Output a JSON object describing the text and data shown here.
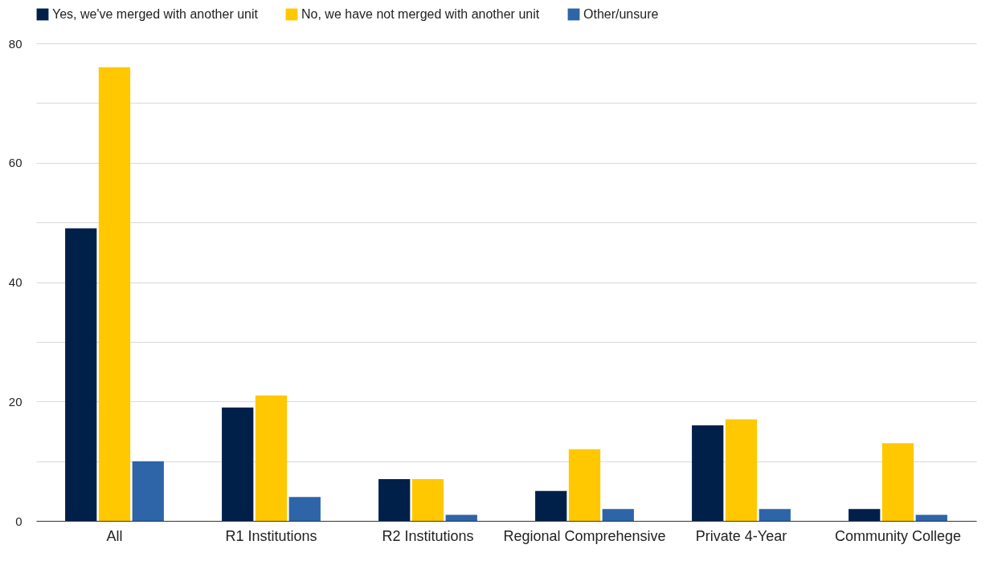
{
  "chart_data": {
    "type": "bar",
    "categories": [
      "All",
      "R1 Institutions",
      "R2 Institutions",
      "Regional Comprehensive",
      "Private 4-Year",
      "Community College"
    ],
    "series": [
      {
        "name": "Yes, we've merged with another unit",
        "color": "#00204a",
        "values": [
          49,
          19,
          7,
          5,
          16,
          2
        ]
      },
      {
        "name": "No, we have not merged with another unit",
        "color": "#ffc800",
        "values": [
          76,
          21,
          7,
          12,
          17,
          13
        ]
      },
      {
        "name": "Other/unsure",
        "color": "#2e64a8",
        "values": [
          10,
          4,
          1,
          2,
          2,
          1
        ]
      }
    ],
    "ylim": [
      0,
      80
    ],
    "yticks": [
      0,
      {
        "value": 10,
        "label": null
      },
      20,
      {
        "value": 30,
        "label": null
      },
      40,
      {
        "value": 50,
        "label": null
      },
      60,
      {
        "value": 70,
        "label": null
      },
      80
    ],
    "grid": true,
    "legend": "top"
  }
}
